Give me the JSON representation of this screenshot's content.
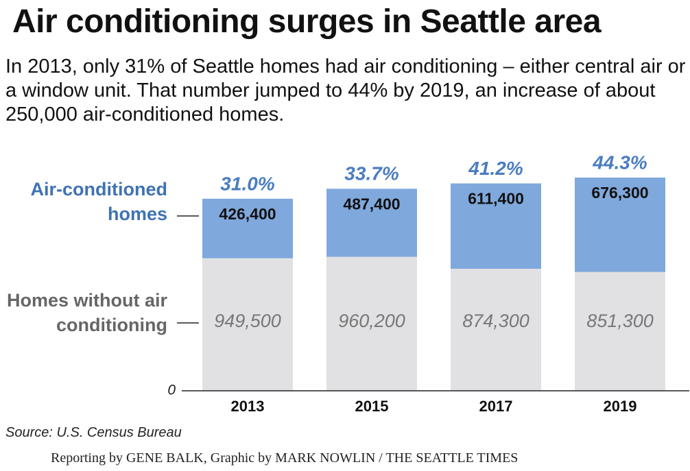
{
  "chart_data": {
    "type": "stacked_bar",
    "title": "Air conditioning surges in Seattle area",
    "subtitle": "In 2013, only 31% of Seattle homes had air conditioning – either central air or a window unit. That number jumped to 44% by 2019, an increase of about 250,000 air-conditioned homes.",
    "categories": [
      "2013",
      "2015",
      "2017",
      "2019"
    ],
    "series": [
      {
        "name": "Homes without air conditioning",
        "color": "#e1e1e3",
        "values": [
          949500,
          960200,
          874300,
          851300
        ],
        "value_labels": [
          "949,500",
          "960,200",
          "874,300",
          "851,300"
        ]
      },
      {
        "name": "Air-conditioned homes",
        "color": "#7fa8dc",
        "values": [
          426400,
          487400,
          611400,
          676300
        ],
        "value_labels": [
          "426,400",
          "487,400",
          "611,400",
          "676,300"
        ]
      }
    ],
    "shares": {
      "values": [
        31.0,
        33.7,
        41.2,
        44.3
      ],
      "value_labels": [
        "31.0%",
        "33.7%",
        "41.2%",
        "44.3%"
      ],
      "color": "#4a7cc0"
    },
    "ylim": [
      0,
      1670000
    ],
    "yticks": [
      0
    ],
    "source": "Source: U.S. Census Bureau",
    "credit": "Reporting by GENE BALK, Graphic by MARK NOWLIN / THE SEATTLE TIMES"
  }
}
